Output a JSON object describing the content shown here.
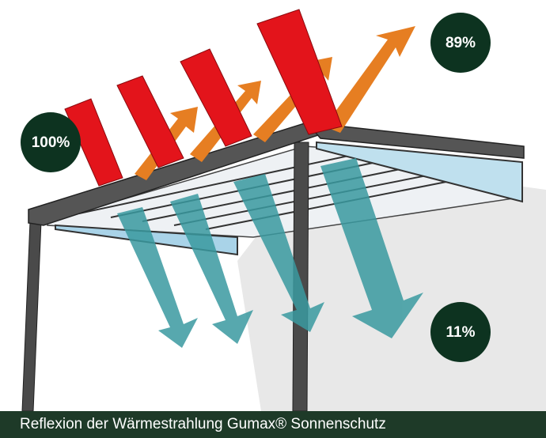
{
  "labels": {
    "incoming": "100%",
    "reflected": "89%",
    "transmitted": "11%"
  },
  "caption": "Reflexion der Wärmestrahlung Gumax® Sonnenschutz"
}
